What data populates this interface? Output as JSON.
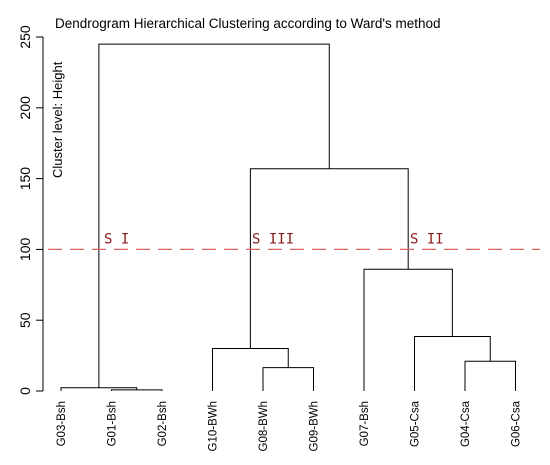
{
  "chart_data": {
    "type": "dendrogram",
    "title": "Dendrogram Hierarchical Clustering according to Ward's method",
    "ylabel": "Cluster level: Height",
    "ylim": [
      0,
      250
    ],
    "yticks": [
      0,
      50,
      100,
      150,
      200,
      250
    ],
    "leaves": [
      "G03-Bsh",
      "G01-Bsh",
      "G02-Bsh",
      "G10-BWh",
      "G08-BWh",
      "G09-BWh",
      "G07-Bsh",
      "G05-Csa",
      "G04-Csa",
      "G06-Csa"
    ],
    "merges": [
      {
        "left": 1,
        "right": 2,
        "height": 0.8
      },
      {
        "left": 0,
        "right": "G01-Bsh+G02-Bsh",
        "height": 2.3
      },
      {
        "left": 4,
        "right": 5,
        "height": 16.5
      },
      {
        "left": 3,
        "right": "G08-BWh+G09-BWh",
        "height": 30
      },
      {
        "left": 8,
        "right": 9,
        "height": 21
      },
      {
        "left": 7,
        "right": "G04-Csa+G06-Csa",
        "height": 38.5
      },
      {
        "left": 6,
        "right": "G05-Csa+G04-Csa+G06-Csa",
        "height": 86
      },
      {
        "left": "cluster III",
        "right": "cluster II",
        "height": 157
      },
      {
        "left": "cluster I",
        "right": "cluster III+II",
        "height": 245
      }
    ],
    "cut_height": 100,
    "clusters": [
      {
        "label": "S I",
        "members": [
          "G03-Bsh",
          "G01-Bsh",
          "G02-Bsh"
        ]
      },
      {
        "label": "S III",
        "members": [
          "G10-BWh",
          "G08-BWh",
          "G09-BWh"
        ]
      },
      {
        "label": "S II",
        "members": [
          "G07-Bsh",
          "G05-Csa",
          "G04-Csa",
          "G06-Csa"
        ]
      }
    ],
    "colors": {
      "lines": "#000000",
      "cut_line": "#e06666",
      "cluster_labels": "#8b1a1a"
    }
  }
}
